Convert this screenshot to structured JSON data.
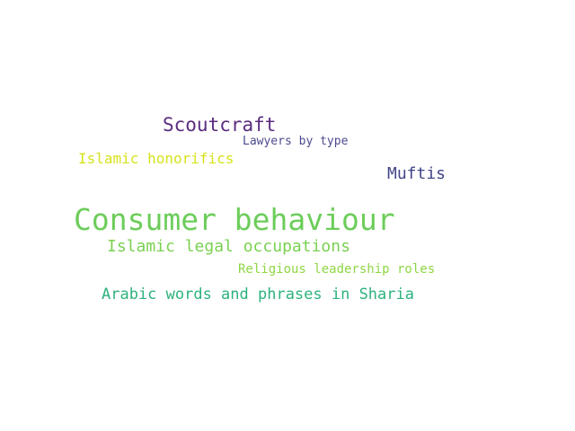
{
  "words": [
    {
      "text": "Scoutcraft",
      "color": "#5b2c7e"
    },
    {
      "text": "Lawyers by type",
      "color": "#4b4a8c"
    },
    {
      "text": "Islamic honorifics",
      "color": "#d7e21d"
    },
    {
      "text": "Muftis",
      "color": "#414487"
    },
    {
      "text": "Consumer behaviour",
      "color": "#6ccd5a"
    },
    {
      "text": "Islamic legal occupations",
      "color": "#7ad151"
    },
    {
      "text": "Religious leadership roles",
      "color": "#8fd744"
    },
    {
      "text": "Arabic words and phrases in Sharia",
      "color": "#2db27d"
    }
  ]
}
